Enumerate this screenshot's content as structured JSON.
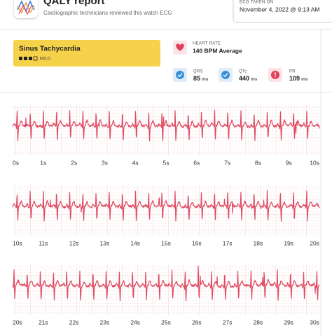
{
  "header": {
    "title": "QALY report",
    "subtitle": "Cardiographic technicians reviewed this watch ECG",
    "date_label": "ECG TAKEN ON",
    "date": "November 4, 2022 @ 9:13 AM"
  },
  "diagnosis": {
    "name": "Sinus Tachycardia",
    "severity": "MILD"
  },
  "heart_rate": {
    "label": "HEART RATE",
    "value": "140 BPM Average"
  },
  "metrics": [
    {
      "label": "QRS",
      "value": "85",
      "unit": "ms"
    },
    {
      "label": "QTc",
      "value": "440",
      "unit": "ms"
    },
    {
      "label": "PR",
      "value": "109",
      "unit": "ms"
    }
  ],
  "strips": [
    {
      "labels": [
        "0s",
        "1s",
        "2s",
        "3s",
        "4s",
        "5s",
        "6s",
        "7s",
        "8s",
        "9s",
        "10s"
      ]
    },
    {
      "labels": [
        "10s",
        "11s",
        "12s",
        "13s",
        "14s",
        "15s",
        "16s",
        "17s",
        "18s",
        "19s",
        "20s"
      ]
    },
    {
      "labels": [
        "20s",
        "21s",
        "22s",
        "23s",
        "24s",
        "25s",
        "26s",
        "27s",
        "28s",
        "29s",
        "30s"
      ]
    }
  ]
}
